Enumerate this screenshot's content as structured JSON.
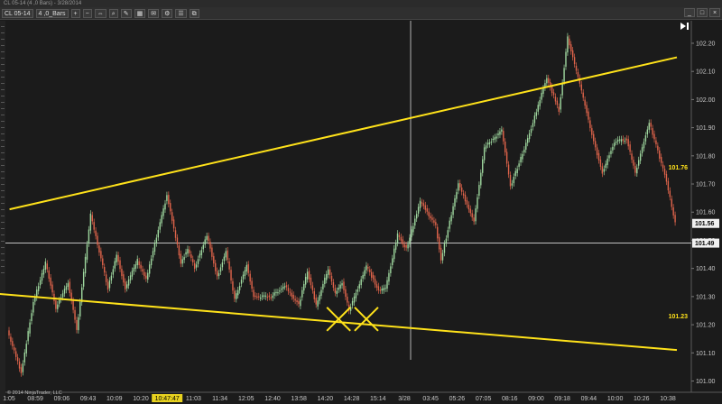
{
  "window": {
    "title": "CL 05-14 (4 ,0 Bars) - 3/28/2014"
  },
  "toolbar": {
    "instrument": "CL 05-14",
    "interval": "4 ,0_Bars",
    "buttons": [
      "+",
      "−",
      "⇔",
      "⌕",
      "✎",
      "▦",
      "✉",
      "⚙",
      "☰",
      "⧉"
    ]
  },
  "window_buttons": [
    "_",
    "□",
    "×"
  ],
  "chart_data": {
    "type": "candlestick",
    "x_tick_labels": [
      "1:05",
      "08:59",
      "09:06",
      "09:43",
      "10:09",
      "10:20",
      "10:47:47",
      "11:03",
      "11:34",
      "12:05",
      "12:40",
      "13:58",
      "14:20",
      "14:28",
      "15:14",
      "3/28",
      "03:45",
      "05:26",
      "07:05",
      "08:16",
      "09:00",
      "09:18",
      "09:44",
      "10:00",
      "10:26",
      "10:38"
    ],
    "x_cursor_label": "10:47:47",
    "y_tick_labels": [
      "102.20",
      "102.10",
      "102.00",
      "101.90",
      "101.80",
      "101.70",
      "101.60",
      "101.50",
      "101.40",
      "101.30",
      "101.20",
      "101.10",
      "101.00"
    ],
    "ylim": [
      100.96,
      102.28
    ],
    "crosshair_price": "101.49",
    "last_price": "101.56",
    "horizontal_levels": [
      "101.76",
      "101.23"
    ],
    "up_color": "#9fd89f",
    "down_color": "#e0644b",
    "trendline_color": "#ffe21a",
    "price_path": [
      [
        0,
        101.18
      ],
      [
        8,
        101.03
      ],
      [
        15,
        101.28
      ],
      [
        22,
        101.42
      ],
      [
        28,
        101.26
      ],
      [
        35,
        101.35
      ],
      [
        40,
        101.18
      ],
      [
        48,
        101.59
      ],
      [
        58,
        101.33
      ],
      [
        63,
        101.45
      ],
      [
        68,
        101.33
      ],
      [
        75,
        101.43
      ],
      [
        80,
        101.36
      ],
      [
        92,
        101.66
      ],
      [
        100,
        101.42
      ],
      [
        104,
        101.47
      ],
      [
        108,
        101.4
      ],
      [
        115,
        101.52
      ],
      [
        121,
        101.37
      ],
      [
        126,
        101.46
      ],
      [
        131,
        101.29
      ],
      [
        138,
        101.41
      ],
      [
        142,
        101.3
      ],
      [
        152,
        101.3
      ],
      [
        160,
        101.34
      ],
      [
        168,
        101.27
      ],
      [
        173,
        101.39
      ],
      [
        178,
        101.27
      ],
      [
        185,
        101.4
      ],
      [
        189,
        101.31
      ],
      [
        193,
        101.35
      ],
      [
        197,
        101.25
      ],
      [
        207,
        101.41
      ],
      [
        214,
        101.32
      ],
      [
        218,
        101.33
      ],
      [
        225,
        101.52
      ],
      [
        230,
        101.47
      ],
      [
        238,
        101.64
      ],
      [
        247,
        101.55
      ],
      [
        250,
        101.43
      ],
      [
        260,
        101.7
      ],
      [
        269,
        101.57
      ],
      [
        275,
        101.83
      ],
      [
        285,
        101.89
      ],
      [
        290,
        101.69
      ],
      [
        300,
        101.86
      ],
      [
        311,
        102.08
      ],
      [
        318,
        101.96
      ],
      [
        323,
        102.22
      ],
      [
        333,
        101.98
      ],
      [
        338,
        101.85
      ],
      [
        343,
        101.74
      ],
      [
        350,
        101.85
      ],
      [
        357,
        101.86
      ],
      [
        362,
        101.74
      ],
      [
        370,
        101.92
      ],
      [
        380,
        101.71
      ],
      [
        385,
        101.56
      ]
    ],
    "trendlines": [
      {
        "from": [
          0.3,
          101.61
        ],
        "to": [
          385,
          102.15
        ]
      },
      {
        "from": [
          -7,
          101.31
        ],
        "to": [
          385,
          101.11
        ]
      }
    ],
    "cross_markers": [
      {
        "x": 190,
        "price": 101.22
      },
      {
        "x": 206,
        "price": 101.22
      }
    ],
    "crosshair_x_tick": 6
  },
  "footer": {
    "copyright": "© 2014 NinjaTrader, LLC"
  }
}
